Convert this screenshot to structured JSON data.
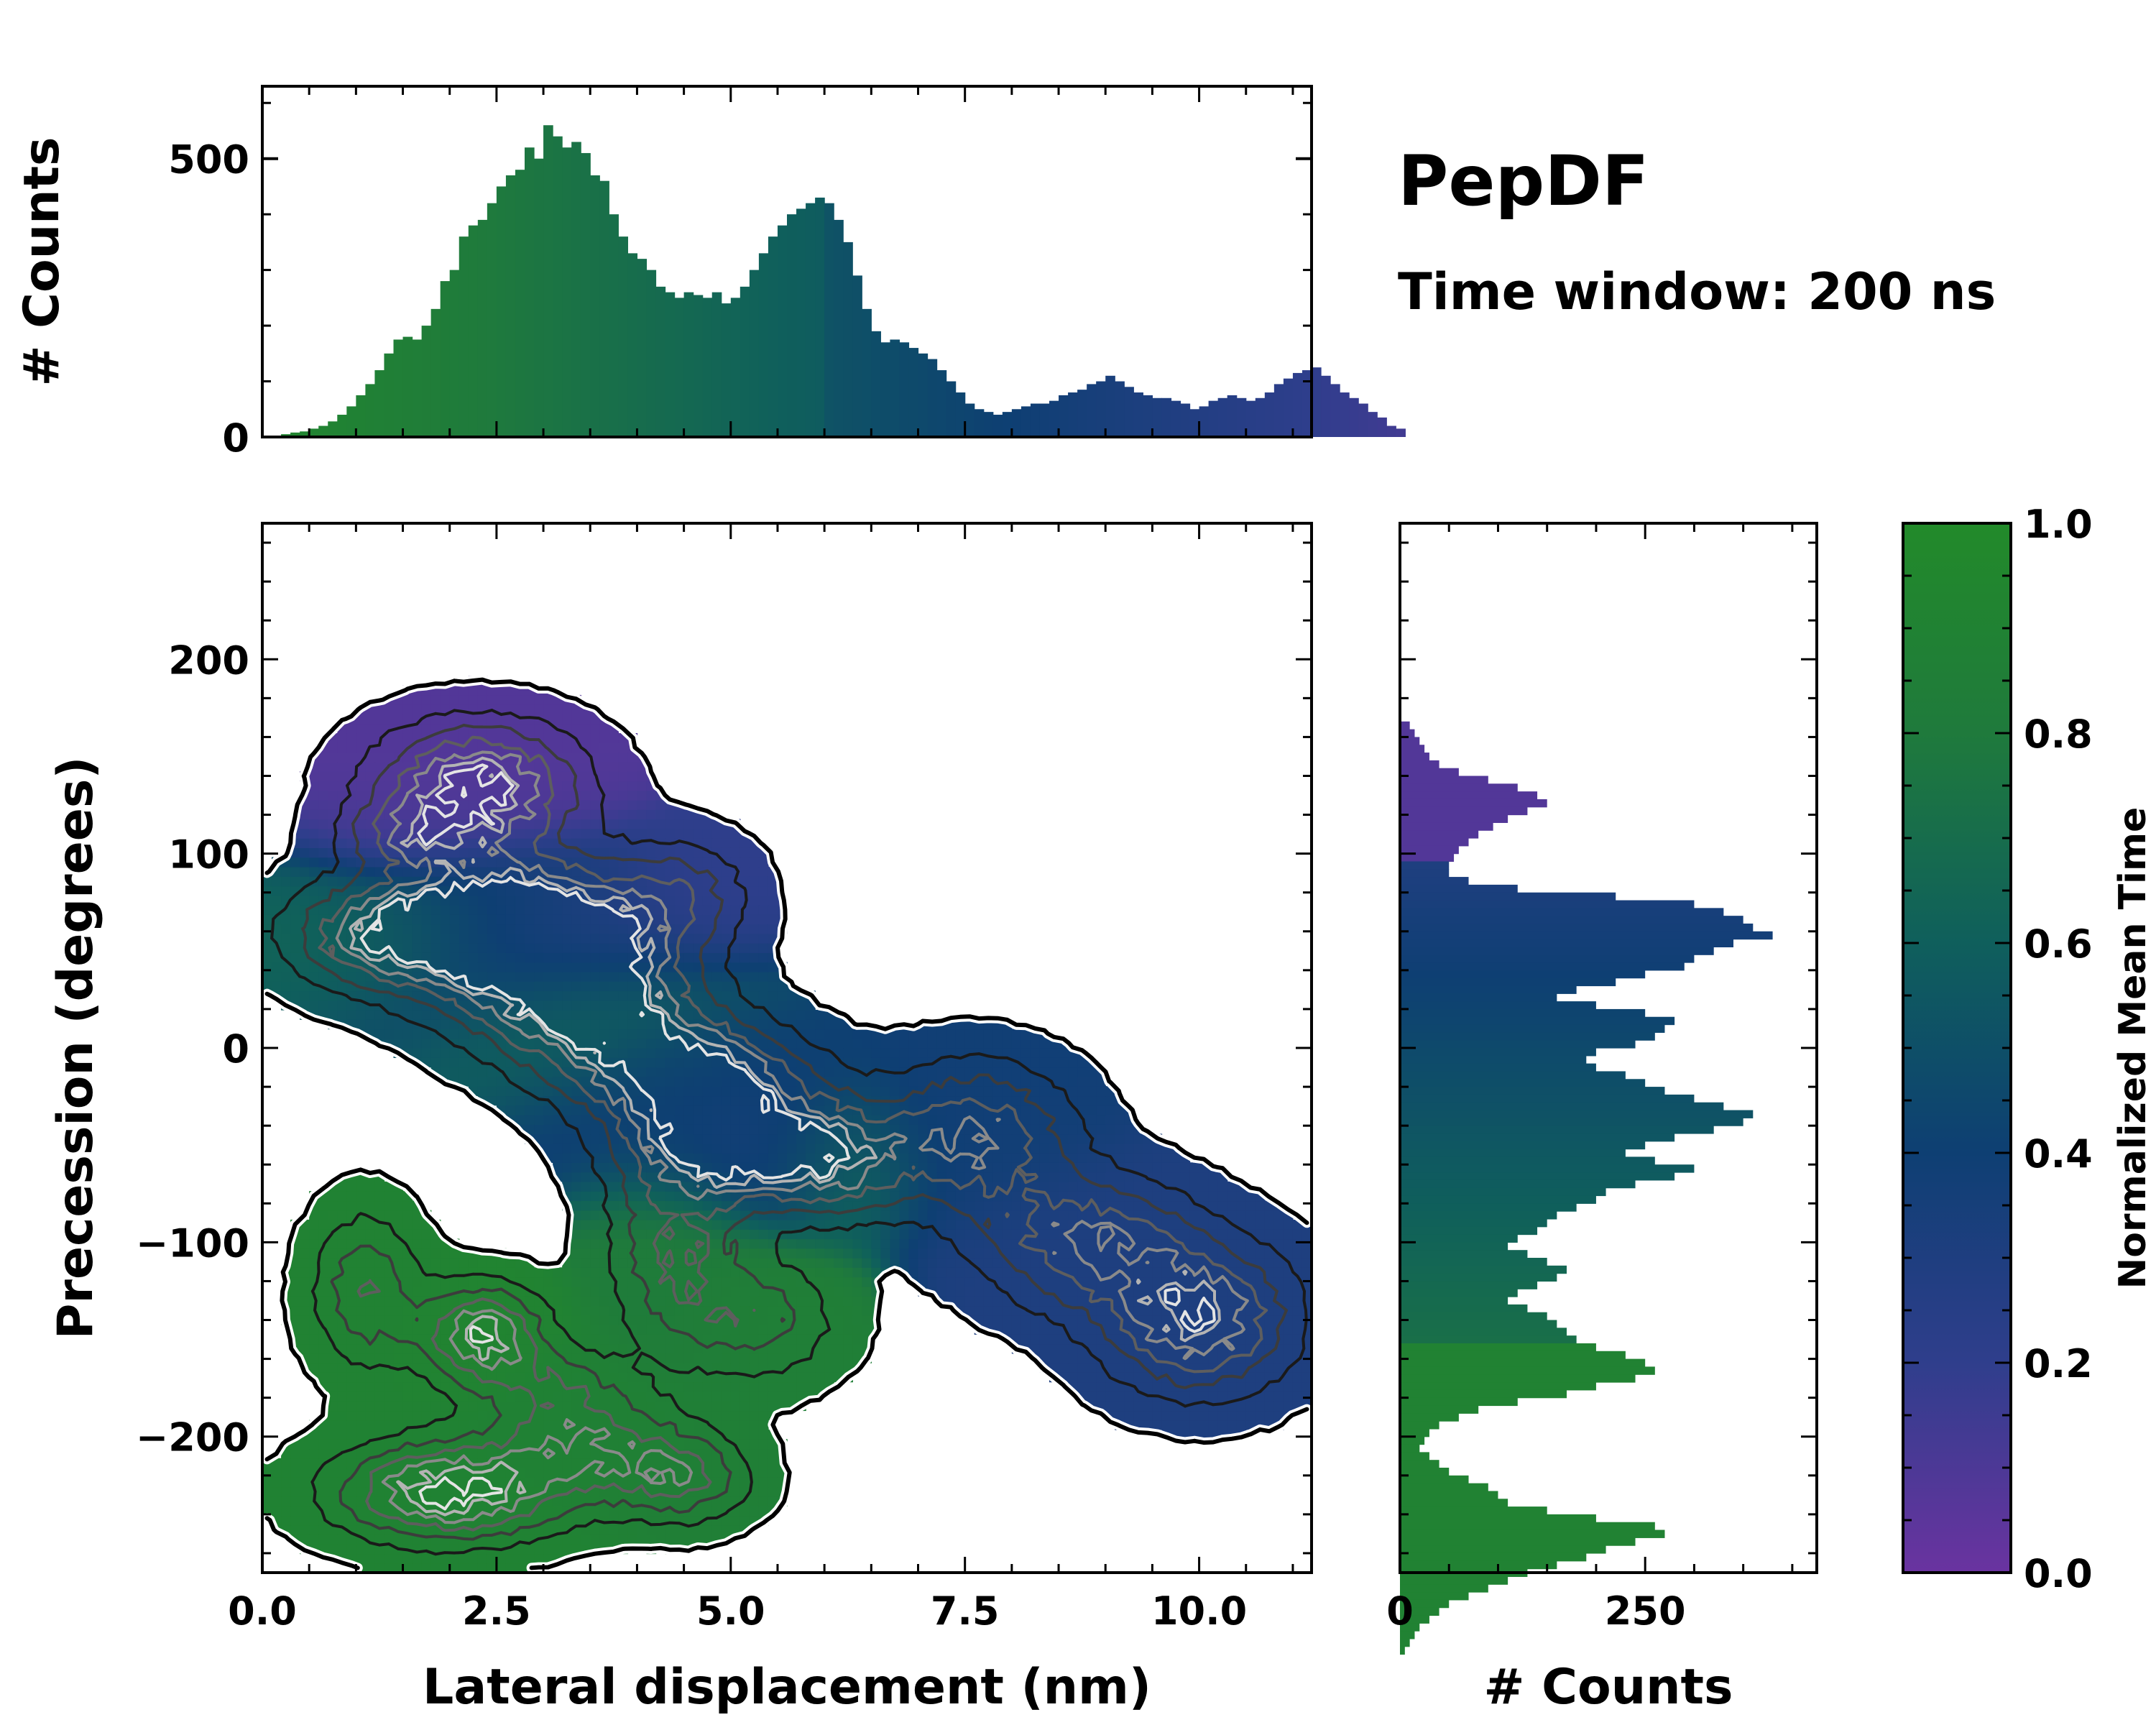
{
  "header": {
    "title": "PepDF",
    "subtitle": "Time window: 200 ns"
  },
  "chart_data": [
    {
      "id": "top-histogram",
      "type": "bar",
      "xlim": [
        0,
        11.2
      ],
      "ylim": [
        0,
        630
      ],
      "ylabel": "# Counts",
      "yticks": [
        0,
        500
      ],
      "yticklabels": [
        "0",
        "500"
      ],
      "bin_width": 0.1,
      "x_start": 0.05,
      "values": [
        0,
        2,
        5,
        8,
        10,
        15,
        20,
        28,
        40,
        55,
        75,
        95,
        120,
        150,
        175,
        180,
        175,
        200,
        230,
        280,
        300,
        360,
        380,
        390,
        420,
        450,
        470,
        480,
        520,
        500,
        560,
        540,
        520,
        530,
        510,
        470,
        460,
        400,
        360,
        330,
        320,
        300,
        270,
        260,
        250,
        260,
        255,
        250,
        260,
        240,
        250,
        270,
        300,
        330,
        360,
        380,
        400,
        410,
        420,
        430,
        420,
        390,
        350,
        290,
        230,
        190,
        170,
        175,
        170,
        160,
        150,
        140,
        120,
        100,
        80,
        60,
        50,
        45,
        40,
        45,
        50,
        55,
        60,
        60,
        65,
        75,
        80,
        85,
        95,
        100,
        110,
        100,
        90,
        80,
        75,
        70,
        70,
        65,
        60,
        50,
        55,
        65,
        70,
        75,
        70,
        65,
        70,
        80,
        95,
        105,
        115,
        120,
        125,
        110,
        95,
        80,
        70,
        60,
        45,
        35,
        20,
        15
      ]
    },
    {
      "id": "right-histogram",
      "type": "bar",
      "orientation": "horizontal",
      "xlim": [
        0,
        425
      ],
      "ylim": [
        -270,
        270
      ],
      "xlabel": "# Counts",
      "xticks": [
        0,
        250
      ],
      "xticklabels": [
        "0",
        "250"
      ],
      "bin_width": 4,
      "y_top": 168,
      "values": [
        10,
        15,
        20,
        25,
        30,
        40,
        60,
        90,
        120,
        140,
        150,
        130,
        110,
        95,
        80,
        70,
        60,
        55,
        50,
        50,
        70,
        120,
        220,
        300,
        330,
        350,
        360,
        380,
        340,
        320,
        300,
        290,
        250,
        220,
        180,
        160,
        200,
        250,
        280,
        270,
        260,
        240,
        200,
        190,
        200,
        230,
        250,
        270,
        300,
        330,
        360,
        350,
        320,
        280,
        250,
        230,
        260,
        300,
        280,
        240,
        210,
        200,
        180,
        160,
        150,
        140,
        120,
        110,
        130,
        150,
        170,
        160,
        140,
        120,
        110,
        130,
        150,
        160,
        170,
        180,
        200,
        230,
        250,
        260,
        240,
        200,
        170,
        120,
        80,
        60,
        40,
        30,
        25,
        20,
        30,
        40,
        50,
        70,
        90,
        100,
        110,
        150,
        200,
        260,
        270,
        240,
        210,
        190,
        160,
        130,
        110,
        90,
        70,
        50,
        40,
        30,
        20,
        15,
        10,
        5
      ]
    },
    {
      "id": "main-heatmap",
      "type": "heatmap",
      "xlabel": "Lateral displacement (nm)",
      "ylabel": "Precession (degrees)",
      "xlim": [
        0,
        11.2
      ],
      "ylim": [
        -270,
        270
      ],
      "xticks": [
        0,
        2.5,
        5,
        7.5,
        10
      ],
      "xticklabels": [
        "0.0",
        "2.5",
        "5.0",
        "7.5",
        "10.0"
      ],
      "yticks": [
        200,
        100,
        0,
        -100,
        -200
      ],
      "yticklabels": [
        "200",
        "100",
        "0",
        "−100",
        "−200"
      ],
      "value_label": "Normalized Mean Time",
      "clusters": [
        {
          "x": 2.3,
          "y": 135,
          "sx": 0.75,
          "sy": 22,
          "amp": 1.0,
          "t": 0.08
        },
        {
          "x": 1.6,
          "y": 110,
          "sx": 0.5,
          "sy": 12,
          "amp": 0.45,
          "t": 0.1
        },
        {
          "x": 2.4,
          "y": 62,
          "sx": 0.9,
          "sy": 26,
          "amp": 1.0,
          "t": 0.45
        },
        {
          "x": 1.2,
          "y": 58,
          "sx": 0.7,
          "sy": 18,
          "amp": 0.6,
          "t": 0.66
        },
        {
          "x": 3.3,
          "y": 58,
          "sx": 0.8,
          "sy": 22,
          "amp": 0.7,
          "t": 0.2
        },
        {
          "x": 4.5,
          "y": 80,
          "sx": 0.5,
          "sy": 20,
          "amp": 0.4,
          "t": 0.2
        },
        {
          "x": 3.5,
          "y": 18,
          "sx": 0.8,
          "sy": 22,
          "amp": 0.9,
          "t": 0.62
        },
        {
          "x": 4.6,
          "y": -15,
          "sx": 0.8,
          "sy": 20,
          "amp": 1.0,
          "t": 0.4
        },
        {
          "x": 5.1,
          "y": -52,
          "sx": 0.8,
          "sy": 20,
          "amp": 1.0,
          "t": 0.35
        },
        {
          "x": 6.2,
          "y": -60,
          "sx": 0.5,
          "sy": 20,
          "amp": 0.5,
          "t": 0.7
        },
        {
          "x": 7.6,
          "y": -45,
          "sx": 0.7,
          "sy": 26,
          "amp": 0.75,
          "t": 0.38
        },
        {
          "x": 8.8,
          "y": -100,
          "sx": 0.8,
          "sy": 24,
          "amp": 0.7,
          "t": 0.3
        },
        {
          "x": 10.0,
          "y": -140,
          "sx": 0.7,
          "sy": 26,
          "amp": 0.9,
          "t": 0.3
        },
        {
          "x": 4.4,
          "y": -105,
          "sx": 0.5,
          "sy": 32,
          "amp": 0.55,
          "t": 0.82
        },
        {
          "x": 5.3,
          "y": -140,
          "sx": 0.6,
          "sy": 22,
          "amp": 0.45,
          "t": 0.86
        },
        {
          "x": 1.1,
          "y": -125,
          "sx": 0.4,
          "sy": 28,
          "amp": 0.55,
          "t": 0.9
        },
        {
          "x": 2.35,
          "y": -148,
          "sx": 0.45,
          "sy": 18,
          "amp": 0.95,
          "t": 0.92
        },
        {
          "x": 2.0,
          "y": -228,
          "sx": 0.85,
          "sy": 18,
          "amp": 1.0,
          "t": 0.9
        },
        {
          "x": 3.5,
          "y": -205,
          "sx": 0.7,
          "sy": 18,
          "amp": 0.6,
          "t": 0.88
        },
        {
          "x": 4.5,
          "y": -222,
          "sx": 0.5,
          "sy": 16,
          "amp": 0.55,
          "t": 0.86
        },
        {
          "x": 3.2,
          "y": -175,
          "sx": 0.5,
          "sy": 15,
          "amp": 0.4,
          "t": 0.88
        }
      ]
    },
    {
      "id": "colorbar",
      "type": "colorbar",
      "label": "Normalized Mean Time",
      "range": [
        0,
        1
      ],
      "ticks": [
        0.0,
        0.2,
        0.4,
        0.6,
        0.8,
        1.0
      ],
      "ticklabels": [
        "0.0",
        "0.2",
        "0.4",
        "0.6",
        "0.8",
        "1.0"
      ],
      "colors": [
        "#6a33a0",
        "#2f3e8c",
        "#0e3f73",
        "#0f5f5c",
        "#1f7a3c",
        "#228a2a"
      ]
    }
  ]
}
